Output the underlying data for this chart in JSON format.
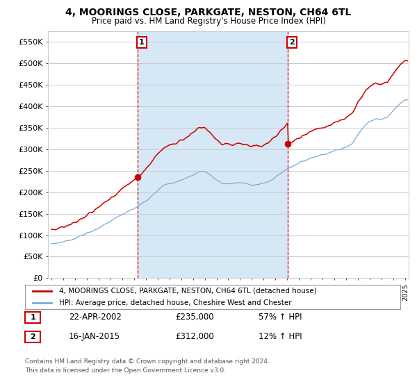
{
  "title": "4, MOORINGS CLOSE, PARKGATE, NESTON, CH64 6TL",
  "subtitle": "Price paid vs. HM Land Registry's House Price Index (HPI)",
  "ylim": [
    0,
    575000
  ],
  "yticks": [
    0,
    50000,
    100000,
    150000,
    200000,
    250000,
    300000,
    350000,
    400000,
    450000,
    500000,
    550000
  ],
  "ytick_labels": [
    "£0",
    "£50K",
    "£100K",
    "£150K",
    "£200K",
    "£250K",
    "£300K",
    "£350K",
    "£400K",
    "£450K",
    "£500K",
    "£550K"
  ],
  "xlim_start": 1994.7,
  "xlim_end": 2025.3,
  "sale1_date": 2002.31,
  "sale1_price": 235000,
  "sale1_label": "1",
  "sale1_display": "22-APR-2002",
  "sale1_amount": "£235,000",
  "sale1_hpi": "57% ↑ HPI",
  "sale2_date": 2015.05,
  "sale2_price": 312000,
  "sale2_label": "2",
  "sale2_display": "16-JAN-2015",
  "sale2_amount": "£312,000",
  "sale2_hpi": "12% ↑ HPI",
  "red_line_color": "#cc0000",
  "blue_line_color": "#7aabd4",
  "shade_color": "#d6e8f5",
  "vline_color": "#cc0000",
  "legend_line1": "4, MOORINGS CLOSE, PARKGATE, NESTON, CH64 6TL (detached house)",
  "legend_line2": "HPI: Average price, detached house, Cheshire West and Chester",
  "footer1": "Contains HM Land Registry data © Crown copyright and database right 2024.",
  "footer2": "This data is licensed under the Open Government Licence v3.0.",
  "background_color": "#ffffff",
  "grid_color": "#cccccc"
}
